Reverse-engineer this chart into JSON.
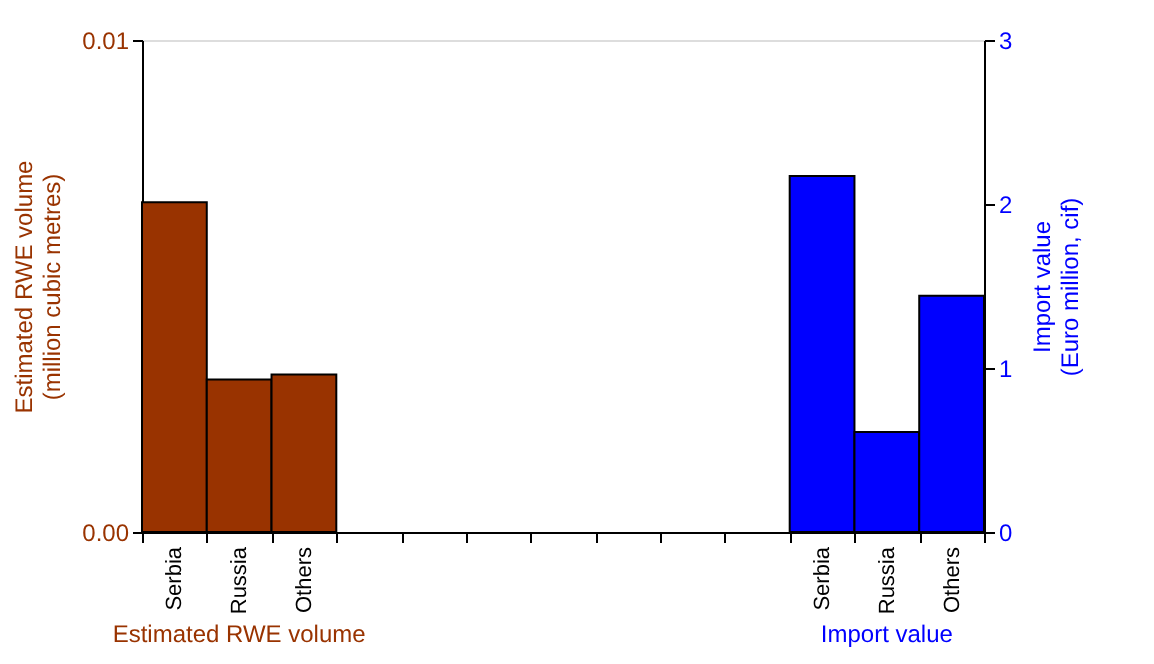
{
  "chart_data": {
    "type": "bar",
    "categories": [
      "Serbia",
      "Russia",
      "Others",
      null,
      null,
      null,
      null,
      null,
      null,
      null,
      "Serbia",
      "Russia",
      "Others"
    ],
    "series": [
      {
        "color": "#993300",
        "values": [
          0.0067,
          0.0031,
          0.0032,
          null,
          null,
          null,
          null,
          null,
          null,
          null,
          null,
          null,
          null
        ]
      },
      {
        "color": "#0000ff",
        "axis": "y2",
        "values": [
          null,
          null,
          null,
          null,
          null,
          null,
          null,
          null,
          null,
          null,
          2.17,
          0.61,
          1.44
        ]
      }
    ],
    "ylabel": "Estimated RWE volume\n(million cubic metres)",
    "y2label": "Import value\n(Euro million, cif)",
    "ylim": [
      0,
      0.01
    ],
    "yticks": [
      {
        "value": 0,
        "label": "0.00"
      },
      {
        "value": 0.01,
        "label": "0.01"
      }
    ],
    "y2lim": [
      0,
      3
    ],
    "y2ticks": [
      0,
      1,
      2,
      3
    ],
    "annotations": [
      "Estimated RWE volume",
      "Import value"
    ]
  }
}
